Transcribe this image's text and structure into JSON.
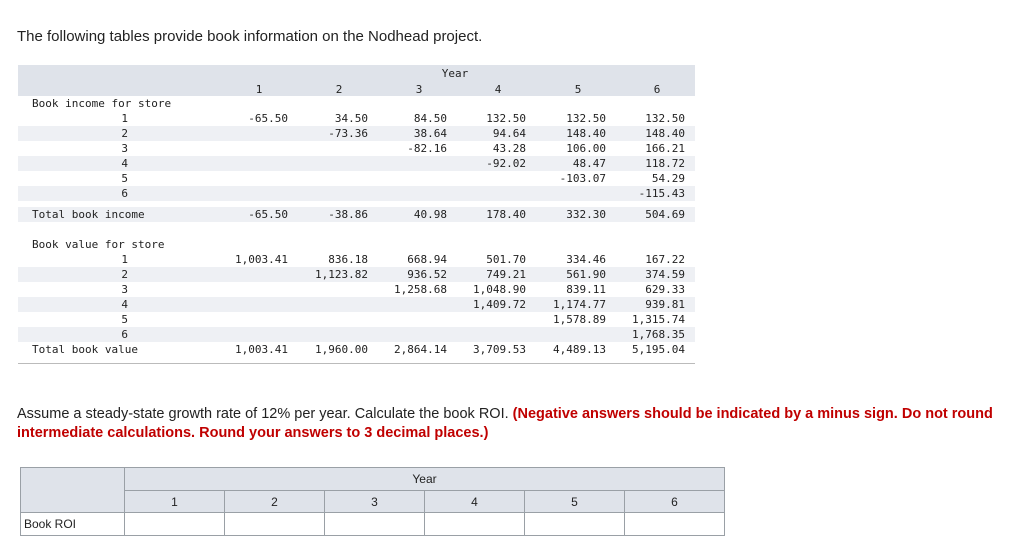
{
  "intro": "The following tables provide book information on the Nodhead project.",
  "table": {
    "year_label": "Year",
    "years": [
      "1",
      "2",
      "3",
      "4",
      "5",
      "6"
    ],
    "income_label": "Book income for store",
    "income_rows": [
      {
        "store": "1",
        "values": [
          "-65.50",
          "34.50",
          "84.50",
          "132.50",
          "132.50",
          "132.50"
        ]
      },
      {
        "store": "2",
        "values": [
          "",
          "-73.36",
          "38.64",
          "94.64",
          "148.40",
          "148.40"
        ]
      },
      {
        "store": "3",
        "values": [
          "",
          "",
          "-82.16",
          "43.28",
          "106.00",
          "166.21"
        ]
      },
      {
        "store": "4",
        "values": [
          "",
          "",
          "",
          "-92.02",
          "48.47",
          "118.72"
        ]
      },
      {
        "store": "5",
        "values": [
          "",
          "",
          "",
          "",
          "-103.07",
          "54.29"
        ]
      },
      {
        "store": "6",
        "values": [
          "",
          "",
          "",
          "",
          "",
          "-115.43"
        ]
      }
    ],
    "total_income_label": "Total book income",
    "total_income": [
      "-65.50",
      "-38.86",
      "40.98",
      "178.40",
      "332.30",
      "504.69"
    ],
    "value_label": "Book value for store",
    "value_rows": [
      {
        "store": "1",
        "values": [
          "1,003.41",
          "836.18",
          "668.94",
          "501.70",
          "334.46",
          "167.22"
        ]
      },
      {
        "store": "2",
        "values": [
          "",
          "1,123.82",
          "936.52",
          "749.21",
          "561.90",
          "374.59"
        ]
      },
      {
        "store": "3",
        "values": [
          "",
          "",
          "1,258.68",
          "1,048.90",
          "839.11",
          "629.33"
        ]
      },
      {
        "store": "4",
        "values": [
          "",
          "",
          "",
          "1,409.72",
          "1,174.77",
          "939.81"
        ]
      },
      {
        "store": "5",
        "values": [
          "",
          "",
          "",
          "",
          "1,578.89",
          "1,315.74"
        ]
      },
      {
        "store": "6",
        "values": [
          "",
          "",
          "",
          "",
          "",
          "1,768.35"
        ]
      }
    ],
    "total_value_label": "Total book value",
    "total_value": [
      "1,003.41",
      "1,960.00",
      "2,864.14",
      "3,709.53",
      "4,489.13",
      "5,195.04"
    ]
  },
  "question": {
    "text": "Assume a steady-state growth rate of 12% per year. Calculate the book ROI. ",
    "emphasis": "(Negative answers should be indicated by a minus sign. Do not round intermediate calculations. Round your answers to 3 decimal places.)"
  },
  "answer": {
    "year_label": "Year",
    "years": [
      "1",
      "2",
      "3",
      "4",
      "5",
      "6"
    ],
    "row_label": "Book ROI",
    "values": [
      "",
      "",
      "",
      "",
      "",
      ""
    ]
  }
}
